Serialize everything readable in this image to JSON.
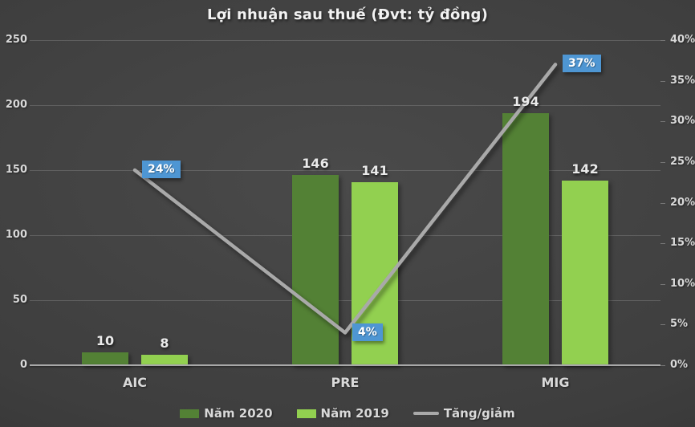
{
  "chart_data": {
    "type": "combo-bar-line",
    "title": "Lợi nhuận sau thuế (Đvt: tỷ đồng)",
    "categories": [
      "AIC",
      "PRE",
      "MIG"
    ],
    "bar_series": [
      {
        "name": "Năm 2020",
        "color": "#538135",
        "values": [
          10,
          146,
          194
        ]
      },
      {
        "name": "Năm 2019",
        "color": "#92d050",
        "values": [
          8,
          141,
          142
        ]
      }
    ],
    "line_series": {
      "name": "Tăng/giảm",
      "color": "#a9a9a9",
      "values": [
        24,
        4,
        37
      ],
      "suffix": "%",
      "label_bg": "#4e96d3",
      "label_text": "#ffffff"
    },
    "left_axis": {
      "min": 0,
      "max": 250,
      "step": 50,
      "ticks": [
        "0",
        "50",
        "100",
        "150",
        "200",
        "250"
      ]
    },
    "right_axis": {
      "min": 0,
      "max": 40,
      "step": 5,
      "suffix": "%",
      "ticks": [
        "0%",
        "5%",
        "10%",
        "15%",
        "20%",
        "25%",
        "30%",
        "35%",
        "40%"
      ]
    },
    "grid": true,
    "legend_position": "bottom",
    "colors": {
      "background_center": "#4a4a4a",
      "background_edge": "#2c2c2c",
      "text": "#d9d9d9"
    }
  }
}
